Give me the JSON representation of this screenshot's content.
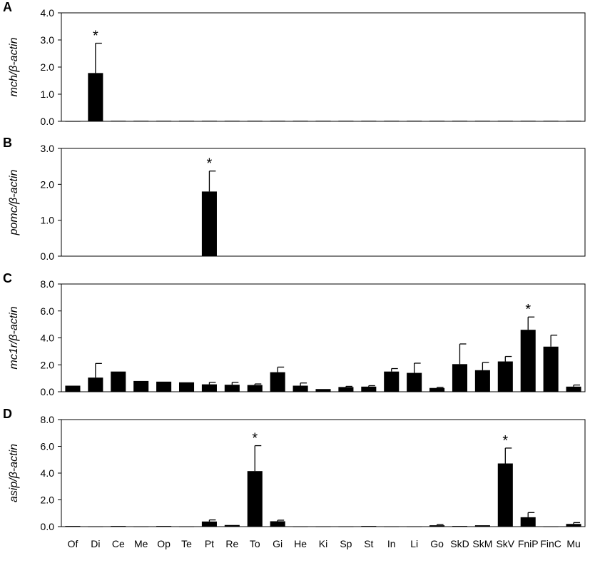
{
  "chart_data": [
    {
      "type": "bar",
      "panel_label": "A",
      "ylabel": "mch/β-actin",
      "ylim": [
        0,
        4.0
      ],
      "yticks": [
        "0.0",
        "1.0",
        "2.0",
        "3.0",
        "4.0"
      ],
      "ytick_values": [
        0,
        1,
        2,
        3,
        4
      ],
      "categories": [
        "Of",
        "Di",
        "Ce",
        "Me",
        "Op",
        "Te",
        "Pt",
        "Re",
        "To",
        "Gi",
        "He",
        "Ki",
        "Sp",
        "St",
        "In",
        "Li",
        "Go",
        "SkD",
        "SkM",
        "SkV",
        "FniP",
        "FinC",
        "Mu"
      ],
      "values": [
        0.01,
        1.78,
        0.02,
        0.02,
        0.02,
        0.02,
        0.02,
        0.02,
        0.02,
        0.02,
        0.02,
        0.02,
        0.02,
        0.02,
        0.02,
        0.02,
        0.02,
        0.02,
        0.02,
        0.02,
        0.02,
        0.02,
        0.02
      ],
      "errors": [
        0,
        1.1,
        0,
        0,
        0,
        0,
        0,
        0,
        0,
        0,
        0,
        0,
        0,
        0,
        0,
        0,
        0,
        0,
        0,
        0,
        0,
        0,
        0
      ],
      "significant": [
        1
      ],
      "significance_mark": "*",
      "show_xticks": false
    },
    {
      "type": "bar",
      "panel_label": "B",
      "ylabel": "pomc/β-actin",
      "ylim": [
        0,
        3.0
      ],
      "yticks": [
        "0.0",
        "1.0",
        "2.0",
        "3.0"
      ],
      "ytick_values": [
        0,
        1,
        2,
        3
      ],
      "categories": [
        "Of",
        "Di",
        "Ce",
        "Me",
        "Op",
        "Te",
        "Pt",
        "Re",
        "To",
        "Gi",
        "He",
        "Ki",
        "Sp",
        "St",
        "In",
        "Li",
        "Go",
        "SkD",
        "SkM",
        "SkV",
        "FniP",
        "FinC",
        "Mu"
      ],
      "values": [
        0,
        0,
        0,
        0,
        0,
        0,
        1.8,
        0,
        0,
        0,
        0,
        0,
        0,
        0,
        0,
        0,
        0,
        0,
        0,
        0,
        0,
        0,
        0
      ],
      "errors": [
        0,
        0,
        0,
        0,
        0,
        0,
        0.57,
        0,
        0,
        0,
        0,
        0,
        0,
        0,
        0,
        0,
        0,
        0,
        0,
        0,
        0,
        0,
        0
      ],
      "significant": [
        6
      ],
      "significance_mark": "*",
      "show_xticks": false
    },
    {
      "type": "bar",
      "panel_label": "C",
      "ylabel": "mc1r/β-actin",
      "ylim": [
        0,
        8.0
      ],
      "yticks": [
        "0.0",
        "2.0",
        "4.0",
        "6.0",
        "8.0"
      ],
      "ytick_values": [
        0,
        2,
        4,
        6,
        8
      ],
      "categories": [
        "Of",
        "Di",
        "Ce",
        "Me",
        "Op",
        "Te",
        "Pt",
        "Re",
        "To",
        "Gi",
        "He",
        "Ki",
        "Sp",
        "St",
        "In",
        "Li",
        "Go",
        "SkD",
        "SkM",
        "SkV",
        "FniP",
        "FinC",
        "Mu"
      ],
      "values": [
        0.45,
        1.05,
        1.5,
        0.8,
        0.75,
        0.7,
        0.55,
        0.52,
        0.5,
        1.45,
        0.45,
        0.2,
        0.35,
        0.38,
        1.5,
        1.4,
        0.28,
        2.05,
        1.6,
        2.25,
        4.6,
        3.35,
        0.38
      ],
      "errors": [
        0,
        1.05,
        0,
        0,
        0,
        0,
        0.15,
        0.18,
        0.08,
        0.38,
        0.2,
        0,
        0.05,
        0.07,
        0.22,
        0.72,
        0.05,
        1.5,
        0.58,
        0.37,
        0.95,
        0.85,
        0.12
      ],
      "significant": [
        20
      ],
      "significance_mark": "*",
      "show_xticks": false
    },
    {
      "type": "bar",
      "panel_label": "D",
      "ylabel": "asip/β-actin",
      "ylim": [
        0,
        8.0
      ],
      "yticks": [
        "0.0",
        "2.0",
        "4.0",
        "6.0",
        "8.0"
      ],
      "ytick_values": [
        0,
        2,
        4,
        6,
        8
      ],
      "categories": [
        "Of",
        "Di",
        "Ce",
        "Me",
        "Op",
        "Te",
        "Pt",
        "Re",
        "To",
        "Gi",
        "He",
        "Ki",
        "Sp",
        "St",
        "In",
        "Li",
        "Go",
        "SkD",
        "SkM",
        "SkV",
        "FniP",
        "FinC",
        "Mu"
      ],
      "values": [
        0.05,
        0.02,
        0.05,
        0.02,
        0.05,
        0.02,
        0.38,
        0.12,
        4.15,
        0.4,
        0.02,
        0.02,
        0.02,
        0.05,
        0.02,
        0.02,
        0.1,
        0.05,
        0.1,
        4.72,
        0.7,
        0.02,
        0.2
      ],
      "errors": [
        0,
        0,
        0,
        0,
        0,
        0,
        0.12,
        0,
        1.9,
        0.08,
        0,
        0,
        0,
        0,
        0,
        0,
        0.05,
        0,
        0,
        1.15,
        0.35,
        0,
        0.1
      ],
      "significant": [
        8,
        19
      ],
      "significance_mark": "*",
      "show_xticks": true
    }
  ]
}
